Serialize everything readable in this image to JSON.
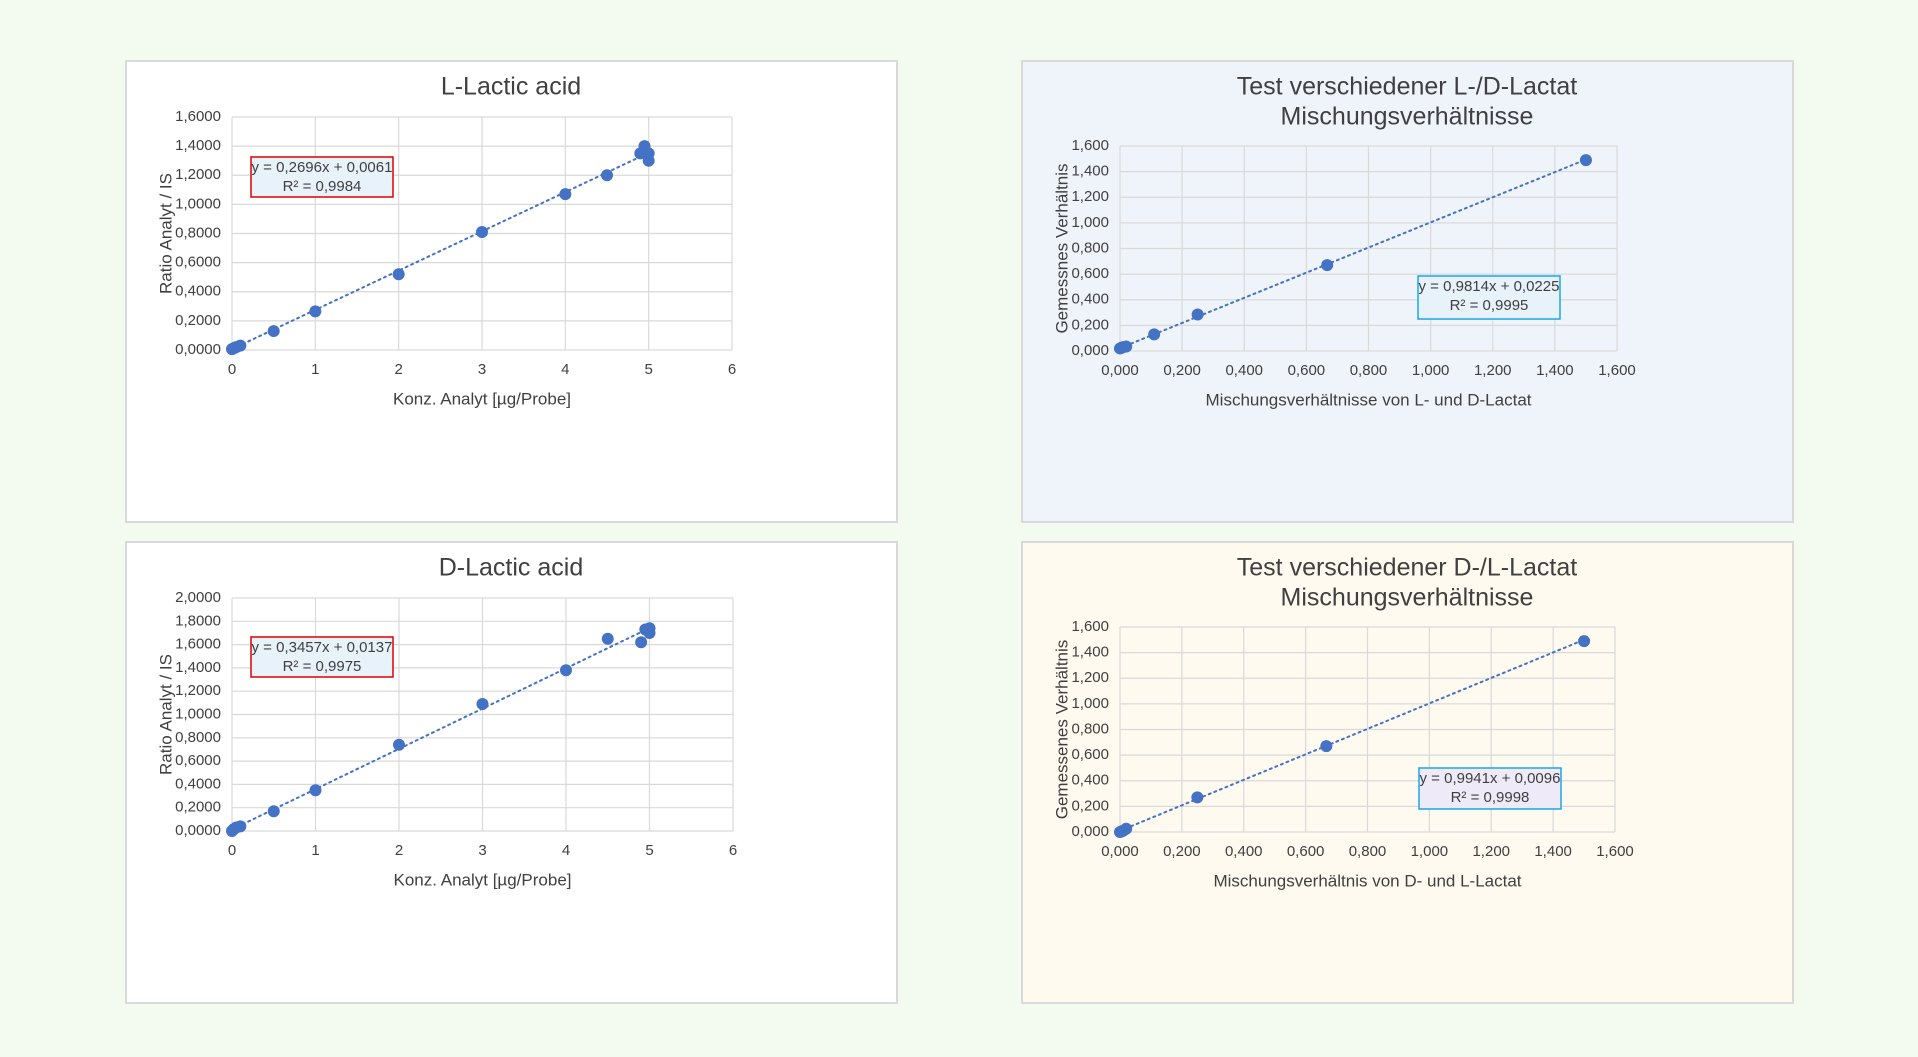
{
  "colors": {
    "page_background": "#f3faf0",
    "point": "#4472c4",
    "trend": "#4472c4",
    "grid": "#d9d9d9",
    "eq_border_red": "#e00000",
    "eq_border_cyan": "#1aa6e8",
    "eq_fill_blue": "#e8f2fb",
    "eq_fill_lilac": "#efeaf8"
  },
  "chart_data": [
    {
      "type": "scatter",
      "title": [
        "L-Lactic acid"
      ],
      "xlabel": "Konz. Analyt [µg/Probe]",
      "ylabel": "Ratio Analyt / IS",
      "xlim": [
        0,
        6
      ],
      "ylim": [
        0,
        1.6
      ],
      "xticks": [
        0,
        1,
        2,
        3,
        4,
        5,
        6
      ],
      "xtick_labels": [
        "0",
        "1",
        "2",
        "3",
        "4",
        "5",
        "6"
      ],
      "yticks": [
        0,
        0.2,
        0.4,
        0.6,
        0.8,
        1.0,
        1.2,
        1.4,
        1.6
      ],
      "ytick_labels": [
        "0,0000",
        "0,2000",
        "0,4000",
        "0,6000",
        "0,8000",
        "1,0000",
        "1,2000",
        "1,4000",
        "1,6000"
      ],
      "grid": true,
      "points": {
        "x": [
          0,
          0.02,
          0.05,
          0.1,
          0.5,
          1,
          2,
          3,
          4,
          4.5,
          4.9,
          4.95,
          5,
          5
        ],
        "y": [
          0.006,
          0.012,
          0.02,
          0.03,
          0.13,
          0.265,
          0.52,
          0.81,
          1.07,
          1.2,
          1.35,
          1.4,
          1.3,
          1.35
        ]
      },
      "trendline": {
        "slope": 0.2696,
        "intercept": 0.0061,
        "x_range": [
          0,
          5
        ],
        "style": "dotted"
      },
      "equation": [
        "y = 0,2696x + 0,0061",
        "R² = 0,9984"
      ],
      "equation_position": "top-left",
      "equation_box_style": "red"
    },
    {
      "type": "scatter",
      "title": [
        "Test verschiedener L-/D-Lactat",
        "Mischungsverhältnisse"
      ],
      "xlabel": "Mischungsverhältnisse von L- und  D-Lactat",
      "ylabel": "Gemessnes Verhältnis",
      "xlim": [
        0,
        1.6
      ],
      "ylim": [
        0,
        1.6
      ],
      "xticks": [
        0,
        0.2,
        0.4,
        0.6,
        0.8,
        1.0,
        1.2,
        1.4,
        1.6
      ],
      "xtick_labels": [
        "0,000",
        "0,200",
        "0,400",
        "0,600",
        "0,800",
        "1,000",
        "1,200",
        "1,400",
        "1,600"
      ],
      "yticks": [
        0,
        0.2,
        0.4,
        0.6,
        0.8,
        1.0,
        1.2,
        1.4,
        1.6
      ],
      "ytick_labels": [
        "0,000",
        "0,200",
        "0,400",
        "0,600",
        "0,800",
        "1,000",
        "1,200",
        "1,400",
        "1,600"
      ],
      "grid": true,
      "points": {
        "x": [
          0.0,
          0.005,
          0.01,
          0.02,
          0.11,
          0.25,
          0.667,
          1.5
        ],
        "y": [
          0.02,
          0.025,
          0.03,
          0.035,
          0.13,
          0.285,
          0.67,
          1.49
        ]
      },
      "trendline": {
        "slope": 0.9814,
        "intercept": 0.0225,
        "x_range": [
          0,
          1.5
        ],
        "style": "dotted"
      },
      "equation": [
        "y = 0,9814x + 0,0225",
        "R² = 0,9995"
      ],
      "equation_position": "bottom-right",
      "equation_box_style": "cyan-blue"
    },
    {
      "type": "scatter",
      "title": [
        "D-Lactic acid"
      ],
      "xlabel": "Konz. Analyt [µg/Probe]",
      "ylabel": "Ratio  Analyt / IS",
      "xlim": [
        0,
        6
      ],
      "ylim": [
        0,
        2.0
      ],
      "xticks": [
        0,
        1,
        2,
        3,
        4,
        5,
        6
      ],
      "xtick_labels": [
        "0",
        "1",
        "2",
        "3",
        "4",
        "5",
        "6"
      ],
      "yticks": [
        0,
        0.2,
        0.4,
        0.6,
        0.8,
        1.0,
        1.2,
        1.4,
        1.6,
        1.8,
        2.0
      ],
      "ytick_labels": [
        "0,0000",
        "0,2000",
        "0,4000",
        "0,6000",
        "0,8000",
        "1,0000",
        "1,2000",
        "1,4000",
        "1,6000",
        "1,8000",
        "2,0000"
      ],
      "grid": true,
      "points": {
        "x": [
          0,
          0.02,
          0.05,
          0.1,
          0.5,
          1,
          2,
          3,
          4,
          4.5,
          4.9,
          4.95,
          5,
          5
        ],
        "y": [
          0.0,
          0.015,
          0.03,
          0.04,
          0.17,
          0.35,
          0.74,
          1.09,
          1.38,
          1.65,
          1.62,
          1.73,
          1.74,
          1.7
        ]
      },
      "trendline": {
        "slope": 0.3457,
        "intercept": 0.0137,
        "x_range": [
          0,
          5
        ],
        "style": "dotted"
      },
      "equation": [
        "y = 0,3457x + 0,0137",
        "R² = 0,9975"
      ],
      "equation_position": "top-left",
      "equation_box_style": "red"
    },
    {
      "type": "scatter",
      "title": [
        "Test verschiedener D-/L-Lactat",
        "Mischungsverhältnisse"
      ],
      "xlabel": "Mischungsverhältnis von D- und L-Lactat",
      "ylabel": "Gemessenes Verhältnis",
      "xlim": [
        0,
        1.6
      ],
      "ylim": [
        0,
        1.6
      ],
      "xticks": [
        0,
        0.2,
        0.4,
        0.6,
        0.8,
        1.0,
        1.2,
        1.4,
        1.6
      ],
      "xtick_labels": [
        "0,000",
        "0,200",
        "0,400",
        "0,600",
        "0,800",
        "1,000",
        "1,200",
        "1,400",
        "1,600"
      ],
      "yticks": [
        0,
        0.2,
        0.4,
        0.6,
        0.8,
        1.0,
        1.2,
        1.4,
        1.6
      ],
      "ytick_labels": [
        "0,000",
        "0,200",
        "0,400",
        "0,600",
        "0,800",
        "1,000",
        "1,200",
        "1,400",
        "1,600"
      ],
      "grid": true,
      "points": {
        "x": [
          0.0,
          0.005,
          0.01,
          0.02,
          0.25,
          0.667,
          1.5
        ],
        "y": [
          0.0,
          0.005,
          0.01,
          0.025,
          0.27,
          0.67,
          1.49
        ]
      },
      "trendline": {
        "slope": 0.9941,
        "intercept": 0.0096,
        "x_range": [
          0,
          1.5
        ],
        "style": "dotted"
      },
      "equation": [
        "y = 0,9941x + 0,0096",
        "R² = 0,9998"
      ],
      "equation_position": "bottom-right",
      "equation_box_style": "cyan-lilac"
    }
  ]
}
